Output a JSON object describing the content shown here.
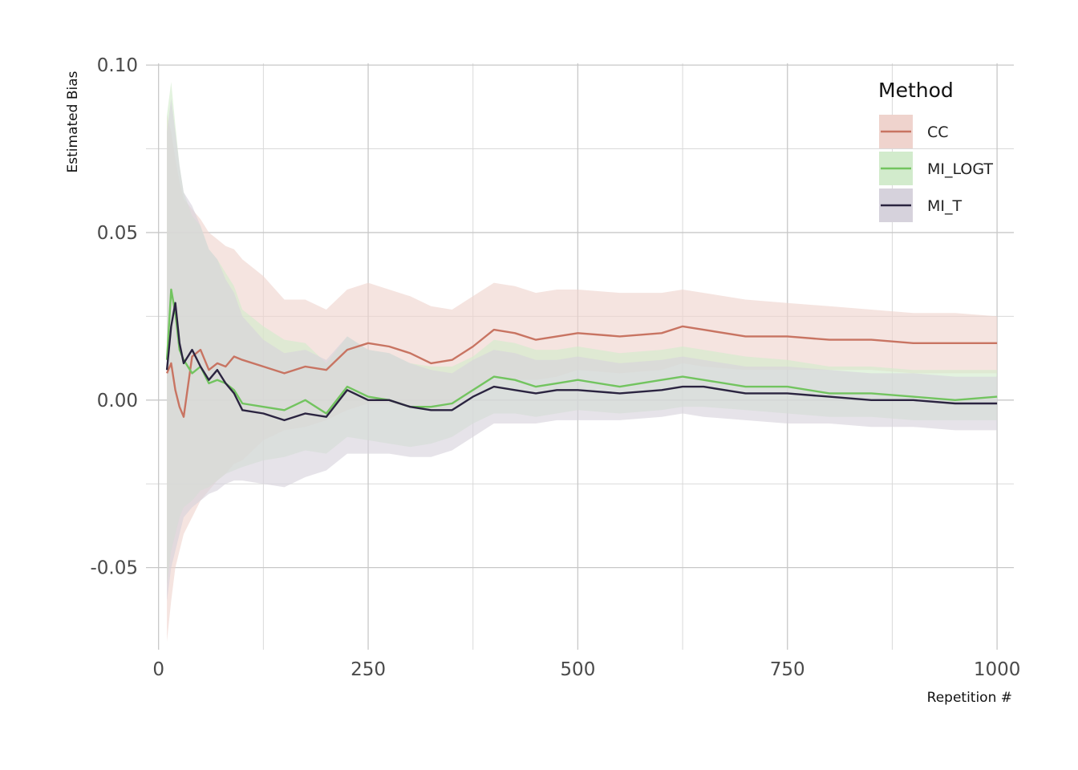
{
  "chart_data": {
    "type": "line",
    "title": "",
    "xlabel": "Repetition #",
    "ylabel": "Estimated Bias",
    "xlim": [
      -15,
      1020
    ],
    "ylim": [
      -0.0745,
      0.1005
    ],
    "x_ticks": [
      0,
      250,
      500,
      750,
      1000
    ],
    "x_tick_labels": [
      "0",
      "250",
      "500",
      "750",
      "1000"
    ],
    "y_ticks": [
      -0.05,
      0.0,
      0.05,
      0.1
    ],
    "y_tick_labels": [
      "-0.05",
      "0.00",
      "0.05",
      "0.10"
    ],
    "grid": true,
    "legend": {
      "title": "Method",
      "position": "top-right"
    },
    "series": [
      {
        "name": "CC",
        "color": "#c87462",
        "band_color": "#efd3cd",
        "x": [
          10,
          15,
          20,
          25,
          30,
          40,
          50,
          60,
          70,
          80,
          90,
          100,
          125,
          150,
          175,
          200,
          225,
          250,
          275,
          300,
          325,
          350,
          375,
          400,
          425,
          450,
          475,
          500,
          550,
          600,
          625,
          650,
          700,
          750,
          800,
          850,
          900,
          950,
          1000
        ],
        "y": [
          0.008,
          0.011,
          0.003,
          -0.002,
          -0.005,
          0.013,
          0.015,
          0.009,
          0.011,
          0.01,
          0.013,
          0.012,
          0.01,
          0.008,
          0.01,
          0.009,
          0.015,
          0.017,
          0.016,
          0.014,
          0.011,
          0.012,
          0.016,
          0.021,
          0.02,
          0.018,
          0.019,
          0.02,
          0.019,
          0.02,
          0.022,
          0.021,
          0.019,
          0.019,
          0.018,
          0.018,
          0.017,
          0.017,
          0.017
        ],
        "lower": [
          -0.072,
          -0.06,
          -0.05,
          -0.045,
          -0.04,
          -0.035,
          -0.03,
          -0.027,
          -0.024,
          -0.022,
          -0.019,
          -0.018,
          -0.012,
          -0.009,
          -0.008,
          -0.006,
          -0.003,
          -0.001,
          -0.001,
          -0.002,
          -0.003,
          -0.002,
          0.002,
          0.007,
          0.006,
          0.006,
          0.007,
          0.009,
          0.008,
          0.009,
          0.011,
          0.01,
          0.009,
          0.009,
          0.009,
          0.009,
          0.008,
          0.008,
          0.008
        ],
        "upper": [
          0.085,
          0.08,
          0.072,
          0.065,
          0.06,
          0.057,
          0.054,
          0.05,
          0.048,
          0.046,
          0.045,
          0.042,
          0.037,
          0.03,
          0.03,
          0.027,
          0.033,
          0.035,
          0.033,
          0.031,
          0.028,
          0.027,
          0.031,
          0.035,
          0.034,
          0.032,
          0.033,
          0.033,
          0.032,
          0.032,
          0.033,
          0.032,
          0.03,
          0.029,
          0.028,
          0.027,
          0.026,
          0.026,
          0.025
        ]
      },
      {
        "name": "MI_LOGT",
        "color": "#72c45f",
        "band_color": "#d2ebcc",
        "x": [
          10,
          15,
          20,
          25,
          30,
          40,
          50,
          60,
          70,
          80,
          90,
          100,
          125,
          150,
          175,
          200,
          225,
          250,
          275,
          300,
          325,
          350,
          375,
          400,
          425,
          450,
          475,
          500,
          550,
          600,
          625,
          650,
          700,
          750,
          800,
          850,
          900,
          950,
          1000
        ],
        "y": [
          0.012,
          0.033,
          0.026,
          0.015,
          0.012,
          0.008,
          0.01,
          0.005,
          0.006,
          0.005,
          0.003,
          -0.001,
          -0.002,
          -0.003,
          0.0,
          -0.004,
          0.004,
          0.001,
          0.0,
          -0.002,
          -0.002,
          -0.001,
          0.003,
          0.007,
          0.006,
          0.004,
          0.005,
          0.006,
          0.004,
          0.006,
          0.007,
          0.006,
          0.004,
          0.004,
          0.002,
          0.002,
          0.001,
          0.0,
          0.001
        ],
        "lower": [
          -0.055,
          -0.045,
          -0.04,
          -0.035,
          -0.032,
          -0.03,
          -0.027,
          -0.026,
          -0.024,
          -0.022,
          -0.021,
          -0.02,
          -0.018,
          -0.017,
          -0.015,
          -0.016,
          -0.011,
          -0.012,
          -0.013,
          -0.014,
          -0.013,
          -0.011,
          -0.007,
          -0.004,
          -0.004,
          -0.005,
          -0.004,
          -0.003,
          -0.004,
          -0.003,
          -0.002,
          -0.002,
          -0.003,
          -0.004,
          -0.005,
          -0.005,
          -0.006,
          -0.006,
          -0.006
        ],
        "upper": [
          0.085,
          0.095,
          0.082,
          0.07,
          0.062,
          0.055,
          0.052,
          0.045,
          0.042,
          0.038,
          0.034,
          0.027,
          0.022,
          0.018,
          0.017,
          0.011,
          0.019,
          0.015,
          0.014,
          0.011,
          0.01,
          0.01,
          0.013,
          0.018,
          0.017,
          0.015,
          0.015,
          0.016,
          0.014,
          0.015,
          0.016,
          0.015,
          0.013,
          0.012,
          0.01,
          0.01,
          0.009,
          0.009,
          0.009
        ]
      },
      {
        "name": "MI_T",
        "color": "#2b2440",
        "band_color": "#d6d2dc",
        "x": [
          10,
          15,
          20,
          25,
          30,
          40,
          50,
          60,
          70,
          80,
          90,
          100,
          125,
          150,
          175,
          200,
          225,
          250,
          275,
          300,
          325,
          350,
          375,
          400,
          425,
          450,
          475,
          500,
          550,
          600,
          625,
          650,
          700,
          750,
          800,
          850,
          900,
          950,
          1000
        ],
        "y": [
          0.009,
          0.022,
          0.029,
          0.017,
          0.011,
          0.015,
          0.01,
          0.006,
          0.009,
          0.005,
          0.002,
          -0.003,
          -0.004,
          -0.006,
          -0.004,
          -0.005,
          0.003,
          0.0,
          0.0,
          -0.002,
          -0.003,
          -0.003,
          0.001,
          0.004,
          0.003,
          0.002,
          0.003,
          0.003,
          0.002,
          0.003,
          0.004,
          0.004,
          0.002,
          0.002,
          0.001,
          0.0,
          0.0,
          -0.001,
          -0.001
        ],
        "lower": [
          -0.06,
          -0.05,
          -0.045,
          -0.04,
          -0.035,
          -0.032,
          -0.03,
          -0.028,
          -0.027,
          -0.025,
          -0.024,
          -0.024,
          -0.025,
          -0.026,
          -0.023,
          -0.021,
          -0.016,
          -0.016,
          -0.016,
          -0.017,
          -0.017,
          -0.015,
          -0.011,
          -0.007,
          -0.007,
          -0.007,
          -0.006,
          -0.006,
          -0.006,
          -0.005,
          -0.004,
          -0.005,
          -0.006,
          -0.007,
          -0.007,
          -0.008,
          -0.008,
          -0.009,
          -0.009
        ],
        "upper": [
          0.08,
          0.09,
          0.08,
          0.07,
          0.062,
          0.058,
          0.052,
          0.045,
          0.042,
          0.036,
          0.032,
          0.025,
          0.018,
          0.014,
          0.015,
          0.012,
          0.019,
          0.015,
          0.014,
          0.011,
          0.009,
          0.008,
          0.012,
          0.015,
          0.014,
          0.012,
          0.012,
          0.013,
          0.011,
          0.012,
          0.013,
          0.012,
          0.01,
          0.01,
          0.009,
          0.008,
          0.008,
          0.007,
          0.007
        ]
      }
    ]
  }
}
